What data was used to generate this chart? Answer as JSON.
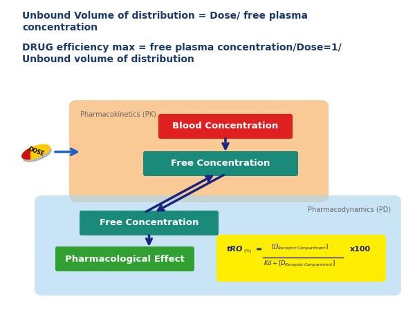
{
  "title_line1": "Unbound Volume of distribution = Dose/ free plasma",
  "title_line2": "concentration",
  "title_line3": "DRUG efficiency max = free plasma concentration/Dose=1/",
  "title_line4": "Unbound volume of distribution",
  "title_color": "#1a3a6b",
  "bg_color": "#ffffff",
  "pk_label": "Pharmacokinetics (PK)",
  "pk_label_color": "#666666",
  "pd_label": "Pharmacodynamics (PD)",
  "pd_label_color": "#666666",
  "blood_box_color": "#e02020",
  "blood_box_text": "Blood Concentration",
  "free_conc_pk_color": "#1a8a7a",
  "free_conc_pk_text": "Free Concentration",
  "free_conc_pd_color": "#1a8a7a",
  "free_conc_pd_text": "Free Concentration",
  "pharm_effect_color": "#30a030",
  "pharm_effect_text": "Pharmacological Effect",
  "formula_box_color": "#ffee00",
  "arrow_color": "#1a237e",
  "dose_text": "DOSE",
  "dose_pill_red": "#cc1111",
  "dose_pill_yellow": "#ffcc00",
  "dose_arrow_color": "#1a5fcc"
}
